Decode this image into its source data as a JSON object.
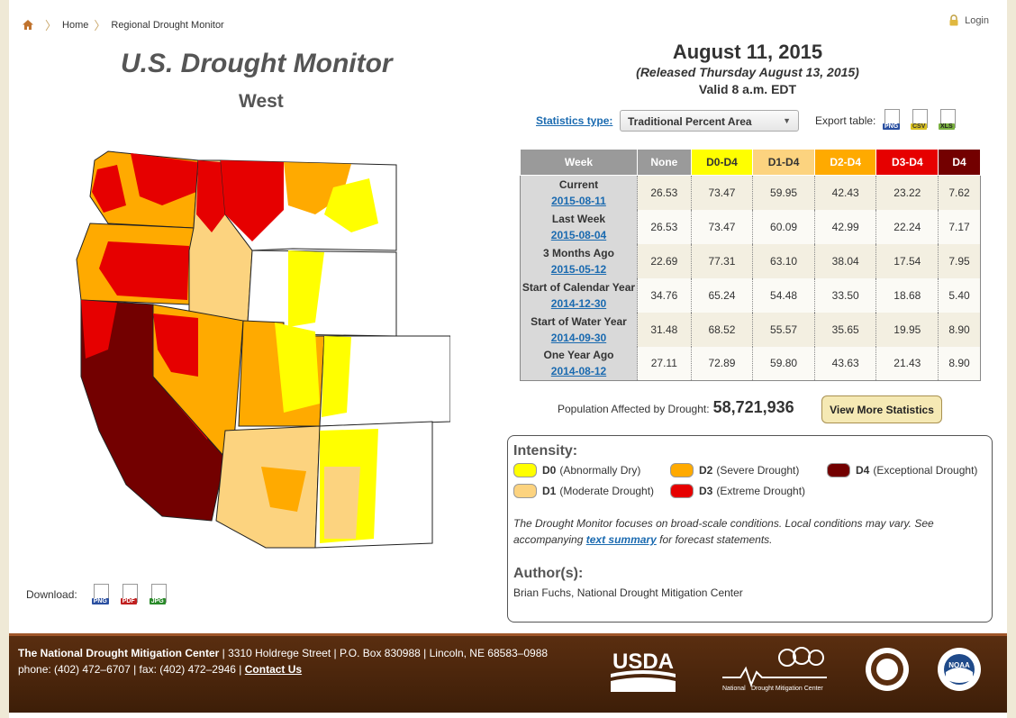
{
  "breadcrumb": {
    "home": "Home",
    "current": "Regional Drought Monitor"
  },
  "login": {
    "label": "Login"
  },
  "map": {
    "title": "U.S. Drought Monitor",
    "region": "West"
  },
  "download": {
    "label": "Download:",
    "formats": [
      "PNG",
      "PDF",
      "JPG"
    ]
  },
  "header": {
    "date": "August 11, 2015",
    "released": "(Released Thursday August 13, 2015)",
    "valid": "Valid 8 a.m. EDT"
  },
  "statistics": {
    "type_label": "Statistics type:",
    "type_value": "Traditional Percent Area",
    "export_label": "Export table:",
    "export_formats": [
      "PNG",
      "CSV",
      "XLS"
    ]
  },
  "table": {
    "headers": [
      "Week",
      "None",
      "D0-D4",
      "D1-D4",
      "D2-D4",
      "D3-D4",
      "D4"
    ],
    "header_colors": [
      "#9a9a9a",
      "#9a9a9a",
      "#ffff00",
      "#fcd37f",
      "#ffaa00",
      "#e60000",
      "#730000"
    ],
    "header_text_colors": [
      "#ffffff",
      "#ffffff",
      "#333333",
      "#333333",
      "#ffffff",
      "#ffffff",
      "#ffffff"
    ],
    "rows": [
      {
        "label": "Current",
        "date": "2015-08-11",
        "values": [
          "26.53",
          "73.47",
          "59.95",
          "42.43",
          "23.22",
          "7.62"
        ]
      },
      {
        "label": "Last Week",
        "date": "2015-08-04",
        "values": [
          "26.53",
          "73.47",
          "60.09",
          "42.99",
          "22.24",
          "7.17"
        ]
      },
      {
        "label": "3 Months Ago",
        "date": "2015-05-12",
        "values": [
          "22.69",
          "77.31",
          "63.10",
          "38.04",
          "17.54",
          "7.95"
        ]
      },
      {
        "label": "Start of Calendar Year",
        "date": "2014-12-30",
        "values": [
          "34.76",
          "65.24",
          "54.48",
          "33.50",
          "18.68",
          "5.40"
        ]
      },
      {
        "label": "Start of Water Year",
        "date": "2014-09-30",
        "values": [
          "31.48",
          "68.52",
          "55.57",
          "35.65",
          "19.95",
          "8.90"
        ]
      },
      {
        "label": "One Year Ago",
        "date": "2014-08-12",
        "values": [
          "27.11",
          "72.89",
          "59.80",
          "43.63",
          "21.43",
          "8.90"
        ]
      }
    ]
  },
  "population": {
    "label": "Population Affected by Drought:",
    "value": "58,721,936"
  },
  "more_button": "View More Statistics",
  "legend": {
    "title": "Intensity:",
    "items": [
      {
        "code": "D0",
        "desc": "(Abnormally Dry)",
        "color": "#ffff00"
      },
      {
        "code": "D1",
        "desc": "(Moderate Drought)",
        "color": "#fcd37f"
      },
      {
        "code": "D2",
        "desc": "(Severe Drought)",
        "color": "#ffaa00"
      },
      {
        "code": "D3",
        "desc": "(Extreme Drought)",
        "color": "#e60000"
      },
      {
        "code": "D4",
        "desc": "(Exceptional Drought)",
        "color": "#730000"
      }
    ],
    "note_before": "The Drought Monitor focuses on broad-scale conditions. Local conditions may vary. See accompanying",
    "note_link": "text summary",
    "note_after": "for forecast statements.",
    "author_title": "Author(s):",
    "author": "Brian Fuchs, National Drought Mitigation Center"
  },
  "footer": {
    "org": "The National Drought Mitigation Center",
    "address": " | 3310 Holdrege Street | P.O. Box 830988 | Lincoln, NE 68583–0988",
    "phone": "phone: (402) 472–6707 | fax: (402) 472–2946 | ",
    "contact": "Contact Us",
    "usda": "USDA",
    "ndmc_logo_1": "National",
    "ndmc_logo_2": "Drought Mitigation Center",
    "noaa": "NOAA"
  }
}
